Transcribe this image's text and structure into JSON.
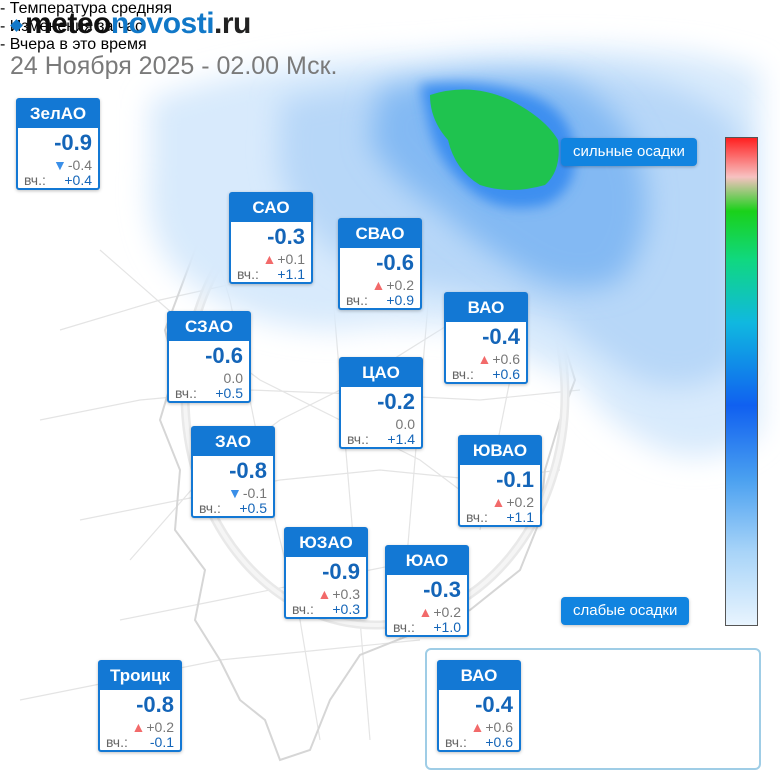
{
  "header": {
    "logo_part1": "meteo",
    "logo_part2": "novosti",
    "logo_part3": ".ru",
    "date": "24 Ноября 2025 - 02.00 Мск."
  },
  "colors": {
    "accent": "#1378d4",
    "temp_text": "#1465b8",
    "arrow_up": "#f26a6a",
    "arrow_down": "#3a8fe8",
    "precip_light": "#cfe6fb",
    "precip_medium": "#3b8ff0",
    "precip_heavy": "#1fc34f"
  },
  "yesterday_label": "вч.:",
  "districts": [
    {
      "id": "zelao",
      "name": "ЗелАО",
      "temp": "-0.9",
      "dir": "down",
      "change": "-0.4",
      "yesterday": "+0.4"
    },
    {
      "id": "sao",
      "name": "САО",
      "temp": "-0.3",
      "dir": "up",
      "change": "+0.1",
      "yesterday": "+1.1"
    },
    {
      "id": "svao",
      "name": "СВАО",
      "temp": "-0.6",
      "dir": "up",
      "change": "+0.2",
      "yesterday": "+0.9"
    },
    {
      "id": "vao",
      "name": "ВАО",
      "temp": "-0.4",
      "dir": "up",
      "change": "+0.6",
      "yesterday": "+0.6"
    },
    {
      "id": "szao",
      "name": "СЗАО",
      "temp": "-0.6",
      "dir": "none",
      "change": "0.0",
      "yesterday": "+0.5"
    },
    {
      "id": "cao",
      "name": "ЦАО",
      "temp": "-0.2",
      "dir": "none",
      "change": "0.0",
      "yesterday": "+1.4"
    },
    {
      "id": "zao",
      "name": "ЗАО",
      "temp": "-0.8",
      "dir": "down",
      "change": "-0.1",
      "yesterday": "+0.5"
    },
    {
      "id": "yuvao",
      "name": "ЮВАО",
      "temp": "-0.1",
      "dir": "up",
      "change": "+0.2",
      "yesterday": "+1.1"
    },
    {
      "id": "yuzao",
      "name": "ЮЗАО",
      "temp": "-0.9",
      "dir": "up",
      "change": "+0.3",
      "yesterday": "+0.3"
    },
    {
      "id": "yuao",
      "name": "ЮАО",
      "temp": "-0.3",
      "dir": "up",
      "change": "+0.2",
      "yesterday": "+1.0"
    },
    {
      "id": "troick",
      "name": "Троицк",
      "temp": "-0.8",
      "dir": "up",
      "change": "+0.2",
      "yesterday": "-0.1"
    }
  ],
  "precip_scale": {
    "top_label": "сильные осадки",
    "bottom_label": "слабые осадки"
  },
  "legend": {
    "example": {
      "name": "ВАО",
      "temp": "-0.4",
      "dir": "up",
      "change": "+0.6",
      "yesterday": "+0.6"
    },
    "line1": "- Температура средняя",
    "line2": "- Изменения за час",
    "line3": "- Вчера в это время"
  }
}
